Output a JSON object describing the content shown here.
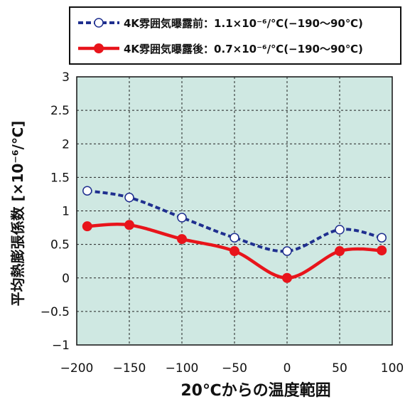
{
  "chart_data": {
    "type": "line",
    "xlabel": "20℃からの温度範囲",
    "ylabel": "平均熱膨張係数 [×10⁻⁶/℃]",
    "xlim": [
      -200,
      100
    ],
    "ylim": [
      -1,
      3
    ],
    "xticks": [
      "-200",
      "-150",
      "-100",
      "-50",
      "0",
      "50",
      "100"
    ],
    "yticks": [
      "-1",
      "-0.5",
      "0",
      "0.5",
      "1",
      "1.5",
      "2",
      "2.5",
      "3"
    ],
    "grid": true,
    "legend_position": "top",
    "background": "#cfe8e2",
    "series": [
      {
        "name": "4K雰囲気曝露前：1.1×10⁻⁶/℃(−190～90℃)",
        "color": "#1f2f8f",
        "line_style": "dashed",
        "marker": "open-circle",
        "x": [
          -190,
          -150,
          -100,
          -50,
          0,
          50,
          90
        ],
        "y": [
          1.3,
          1.2,
          0.9,
          0.6,
          0.4,
          0.72,
          0.6
        ]
      },
      {
        "name": "4K雰囲気曝露後：0.7×10⁻⁶/℃(−190～90℃)",
        "color": "#e8141b",
        "line_style": "solid",
        "marker": "filled-circle",
        "x": [
          -190,
          -150,
          -100,
          -50,
          0,
          50,
          90
        ],
        "y": [
          0.77,
          0.79,
          0.58,
          0.4,
          0.0,
          0.4,
          0.41
        ]
      }
    ]
  }
}
